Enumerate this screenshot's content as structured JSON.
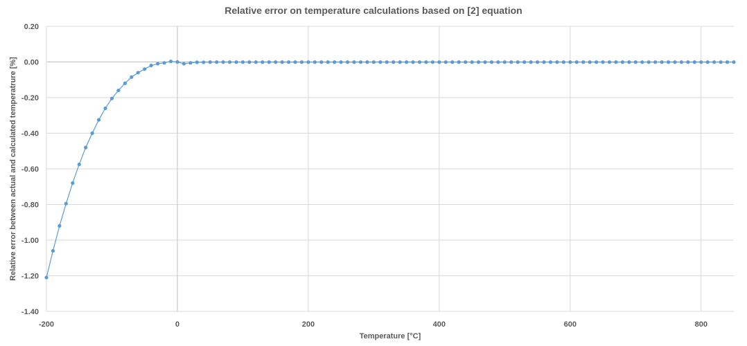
{
  "chart_data": {
    "type": "scatter",
    "title": "Relative error on temperature calculations based on [2] equation",
    "xlabel": "Temperature [°C]",
    "ylabel": "Relative error  between actual and calculated temperatrure [%]",
    "xlim": [
      -200,
      850
    ],
    "ylim": [
      -1.4,
      0.2
    ],
    "x_ticks": [
      -200,
      0,
      200,
      400,
      600,
      800
    ],
    "x_tick_labels": [
      "-200",
      "0",
      "200",
      "400",
      "600",
      "800"
    ],
    "y_ticks": [
      0.2,
      0.0,
      -0.2,
      -0.4,
      -0.6,
      -0.8,
      -1.0,
      -1.2,
      -1.4
    ],
    "y_tick_labels": [
      "0.20",
      "0.00",
      "-0.20",
      "-0.40",
      "-0.60",
      "-0.80",
      "-1.00",
      "-1.20",
      "-1.40"
    ],
    "grid": true,
    "legend": "none",
    "series": [
      {
        "color": "#5b9bd5",
        "x": [
          -200,
          -190,
          -180,
          -170,
          -160,
          -150,
          -140,
          -130,
          -120,
          -110,
          -100,
          -90,
          -80,
          -70,
          -60,
          -50,
          -40,
          -30,
          -20,
          -10,
          0,
          10,
          20,
          30,
          40,
          50,
          60,
          70,
          80,
          90,
          100,
          110,
          120,
          130,
          140,
          150,
          160,
          170,
          180,
          190,
          200,
          210,
          220,
          230,
          240,
          250,
          260,
          270,
          280,
          290,
          300,
          310,
          320,
          330,
          340,
          350,
          360,
          370,
          380,
          390,
          400,
          410,
          420,
          430,
          440,
          450,
          460,
          470,
          480,
          490,
          500,
          510,
          520,
          530,
          540,
          550,
          560,
          570,
          580,
          590,
          600,
          610,
          620,
          630,
          640,
          650,
          660,
          670,
          680,
          690,
          700,
          710,
          720,
          730,
          740,
          750,
          760,
          770,
          780,
          790,
          800,
          810,
          820,
          830,
          840,
          850
        ],
        "y": [
          -1.21,
          -1.06,
          -0.92,
          -0.795,
          -0.68,
          -0.575,
          -0.48,
          -0.4,
          -0.325,
          -0.26,
          -0.205,
          -0.16,
          -0.12,
          -0.085,
          -0.06,
          -0.04,
          -0.02,
          -0.01,
          -0.005,
          0.003,
          0.0,
          -0.01,
          -0.005,
          -0.002,
          -0.002,
          -0.001,
          -0.001,
          -0.001,
          -0.001,
          -0.001,
          -0.001,
          -0.001,
          -0.001,
          -0.001,
          -0.001,
          -0.001,
          -0.001,
          -0.001,
          -0.001,
          -0.001,
          -0.001,
          -0.001,
          -0.001,
          -0.001,
          -0.001,
          -0.001,
          -0.001,
          -0.001,
          -0.001,
          -0.001,
          -0.001,
          -0.001,
          -0.001,
          -0.001,
          -0.001,
          -0.001,
          -0.001,
          -0.001,
          -0.001,
          -0.001,
          -0.001,
          -0.001,
          -0.001,
          -0.001,
          -0.001,
          -0.001,
          -0.001,
          -0.001,
          -0.001,
          -0.001,
          -0.001,
          -0.001,
          -0.001,
          -0.001,
          -0.001,
          -0.001,
          -0.001,
          -0.001,
          -0.001,
          -0.001,
          -0.001,
          -0.001,
          -0.001,
          -0.001,
          -0.001,
          -0.001,
          -0.001,
          -0.001,
          -0.001,
          -0.001,
          -0.001,
          -0.001,
          -0.001,
          -0.001,
          -0.001,
          -0.001,
          -0.001,
          -0.001,
          -0.001,
          -0.001,
          -0.001,
          -0.001,
          -0.001,
          -0.001,
          -0.001,
          -0.001
        ]
      }
    ]
  }
}
